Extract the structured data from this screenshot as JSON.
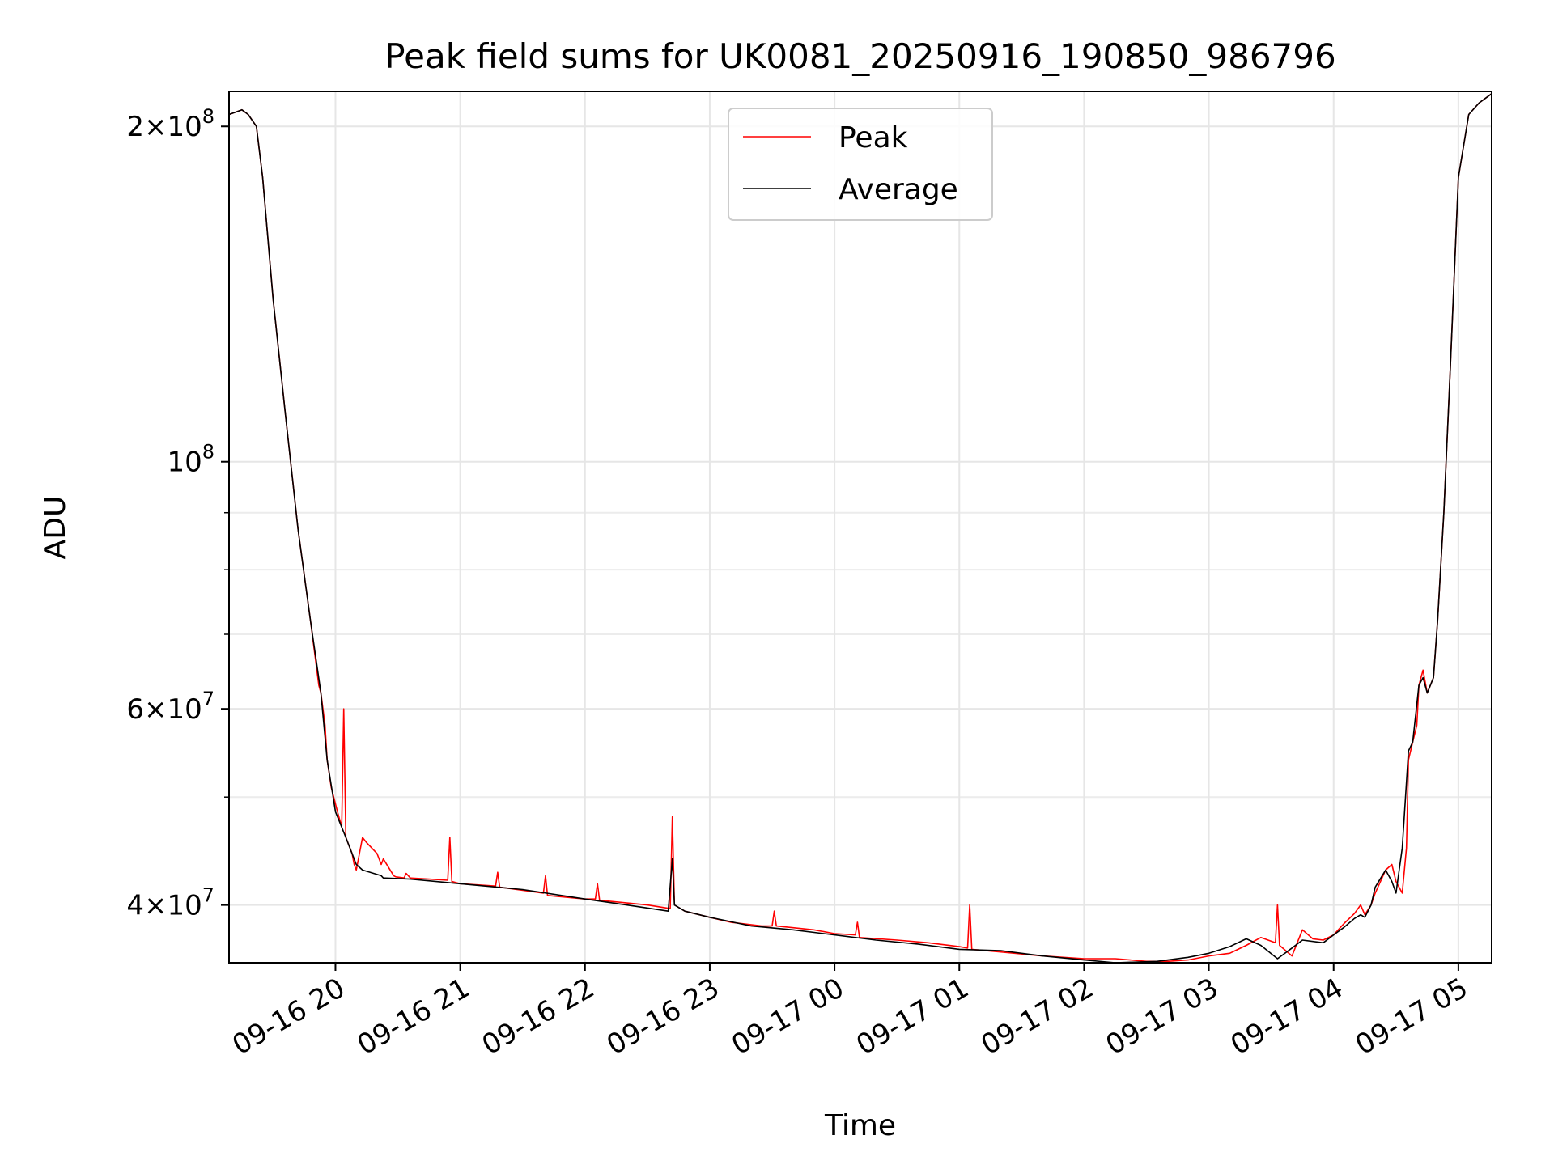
{
  "chart_data": {
    "type": "line",
    "title": "Peak field sums for UK0081_20250916_190850_986796",
    "xlabel": "Time",
    "ylabel": "ADU",
    "x_axis_type": "datetime",
    "xlim": [
      "2025-09-16T19:08:50",
      "2025-09-17T05:16:00"
    ],
    "ylim": [
      35500000,
      215000000
    ],
    "yscale": "log",
    "grid": true,
    "legend_position": "upper-center",
    "x_ticks": [
      {
        "value": "2025-09-16T20:00",
        "label": "09-16 20"
      },
      {
        "value": "2025-09-16T21:00",
        "label": "09-16 21"
      },
      {
        "value": "2025-09-16T22:00",
        "label": "09-16 22"
      },
      {
        "value": "2025-09-16T23:00",
        "label": "09-16 23"
      },
      {
        "value": "2025-09-17T00:00",
        "label": "09-17 00"
      },
      {
        "value": "2025-09-17T01:00",
        "label": "09-17 01"
      },
      {
        "value": "2025-09-17T02:00",
        "label": "09-17 02"
      },
      {
        "value": "2025-09-17T03:00",
        "label": "09-17 03"
      },
      {
        "value": "2025-09-17T04:00",
        "label": "09-17 04"
      },
      {
        "value": "2025-09-17T05:00",
        "label": "09-17 05"
      }
    ],
    "y_ticks": [
      {
        "value": 40000000,
        "mant": "4",
        "exp": "7"
      },
      {
        "value": 60000000,
        "mant": "6",
        "exp": "7"
      },
      {
        "value": 100000000,
        "mant": "",
        "exp": "8"
      },
      {
        "value": 200000000,
        "mant": "2",
        "exp": "8"
      }
    ],
    "y_minor_ticks": [
      50000000,
      70000000,
      80000000,
      90000000
    ],
    "series": [
      {
        "name": "Peak",
        "color": "#ff0000",
        "x": [
          "2025-09-16T19:08:50",
          "2025-09-16T19:12",
          "2025-09-16T19:15",
          "2025-09-16T19:18",
          "2025-09-16T19:22",
          "2025-09-16T19:25",
          "2025-09-16T19:30",
          "2025-09-16T19:36",
          "2025-09-16T19:42",
          "2025-09-16T19:48",
          "2025-09-16T19:52",
          "2025-09-16T19:53",
          "2025-09-16T19:55",
          "2025-09-16T19:56",
          "2025-09-16T19:58",
          "2025-09-16T20:01",
          "2025-09-16T20:03",
          "2025-09-16T20:04",
          "2025-09-16T20:05",
          "2025-09-16T20:08",
          "2025-09-16T20:09",
          "2025-09-16T20:10",
          "2025-09-16T20:13",
          "2025-09-16T20:15",
          "2025-09-16T20:20",
          "2025-09-16T20:22",
          "2025-09-16T20:23",
          "2025-09-16T20:28",
          "2025-09-16T20:29",
          "2025-09-16T20:33",
          "2025-09-16T20:34",
          "2025-09-16T20:36",
          "2025-09-16T20:45",
          "2025-09-16T20:54",
          "2025-09-16T20:55",
          "2025-09-16T20:56",
          "2025-09-16T21:00",
          "2025-09-16T21:17",
          "2025-09-16T21:18",
          "2025-09-16T21:19",
          "2025-09-16T21:40",
          "2025-09-16T21:41",
          "2025-09-16T21:42",
          "2025-09-16T22:00",
          "2025-09-16T22:05",
          "2025-09-16T22:06",
          "2025-09-16T22:07",
          "2025-09-16T22:30",
          "2025-09-16T22:41",
          "2025-09-16T22:42",
          "2025-09-16T22:43",
          "2025-09-16T22:48",
          "2025-09-16T23:00",
          "2025-09-16T23:10",
          "2025-09-16T23:25",
          "2025-09-16T23:30",
          "2025-09-16T23:31",
          "2025-09-16T23:32",
          "2025-09-16T23:50",
          "2025-09-17T00:00",
          "2025-09-17T00:10",
          "2025-09-17T00:11",
          "2025-09-17T00:12",
          "2025-09-17T00:30",
          "2025-09-17T00:45",
          "2025-09-17T01:00",
          "2025-09-17T01:04",
          "2025-09-17T01:05",
          "2025-09-17T01:06",
          "2025-09-17T01:20",
          "2025-09-17T01:40",
          "2025-09-17T02:00",
          "2025-09-17T02:15",
          "2025-09-17T02:30",
          "2025-09-17T02:40",
          "2025-09-17T02:50",
          "2025-09-17T03:00",
          "2025-09-17T03:10",
          "2025-09-17T03:18",
          "2025-09-17T03:25",
          "2025-09-17T03:32",
          "2025-09-17T03:33",
          "2025-09-17T03:34",
          "2025-09-17T03:40",
          "2025-09-17T03:45",
          "2025-09-17T03:50",
          "2025-09-17T03:55",
          "2025-09-17T04:00",
          "2025-09-17T04:05",
          "2025-09-17T04:10",
          "2025-09-17T04:13",
          "2025-09-17T04:15",
          "2025-09-17T04:18",
          "2025-09-17T04:20",
          "2025-09-17T04:25",
          "2025-09-17T04:28",
          "2025-09-17T04:30",
          "2025-09-17T04:33",
          "2025-09-17T04:35",
          "2025-09-17T04:36",
          "2025-09-17T04:38",
          "2025-09-17T04:40",
          "2025-09-17T04:41",
          "2025-09-17T04:43",
          "2025-09-17T04:45",
          "2025-09-17T04:48",
          "2025-09-17T04:50",
          "2025-09-17T04:53",
          "2025-09-17T04:56",
          "2025-09-17T05:00",
          "2025-09-17T05:05",
          "2025-09-17T05:10",
          "2025-09-17T05:16"
        ],
        "y": [
          205000000,
          206000000,
          207000000,
          205000000,
          200000000,
          180000000,
          140000000,
          110000000,
          87000000,
          72000000,
          63000000,
          62000000,
          58000000,
          54000000,
          51000000,
          48500000,
          47000000,
          60000000,
          46000000,
          44500000,
          43500000,
          43000000,
          46000000,
          45500000,
          44500000,
          43500000,
          44000000,
          42500000,
          42400000,
          42300000,
          42700000,
          42300000,
          42200000,
          42100000,
          46000000,
          42000000,
          41800000,
          41600000,
          42800000,
          41500000,
          41000000,
          42500000,
          40800000,
          40500000,
          40500000,
          41800000,
          40400000,
          40000000,
          39700000,
          48000000,
          40000000,
          39500000,
          39000000,
          38600000,
          38300000,
          38300000,
          39500000,
          38300000,
          38000000,
          37700000,
          37600000,
          38600000,
          37400000,
          37200000,
          37000000,
          36700000,
          36600000,
          40000000,
          36500000,
          36300000,
          36000000,
          35800000,
          35800000,
          35600000,
          35600000,
          35700000,
          36000000,
          36200000,
          36800000,
          37400000,
          37000000,
          40000000,
          36800000,
          36000000,
          38000000,
          37300000,
          37200000,
          37600000,
          38500000,
          39300000,
          40000000,
          39200000,
          40000000,
          41000000,
          43000000,
          43500000,
          42000000,
          41000000,
          45000000,
          54000000,
          56000000,
          58000000,
          63000000,
          65000000,
          62000000,
          64000000,
          72000000,
          90000000,
          120000000,
          180000000,
          205000000,
          210000000,
          214000000
        ]
      },
      {
        "name": "Average",
        "color": "#000000",
        "x": [
          "2025-09-16T19:08:50",
          "2025-09-16T19:12",
          "2025-09-16T19:15",
          "2025-09-16T19:18",
          "2025-09-16T19:22",
          "2025-09-16T19:25",
          "2025-09-16T19:30",
          "2025-09-16T19:36",
          "2025-09-16T19:42",
          "2025-09-16T19:48",
          "2025-09-16T19:53",
          "2025-09-16T19:56",
          "2025-09-16T20:00",
          "2025-09-16T20:05",
          "2025-09-16T20:10",
          "2025-09-16T20:13",
          "2025-09-16T20:22",
          "2025-09-16T20:23",
          "2025-09-16T20:36",
          "2025-09-16T21:00",
          "2025-09-16T21:30",
          "2025-09-16T22:00",
          "2025-09-16T22:20",
          "2025-09-16T22:40",
          "2025-09-16T22:42",
          "2025-09-16T22:43",
          "2025-09-16T22:48",
          "2025-09-16T23:00",
          "2025-09-16T23:20",
          "2025-09-16T23:40",
          "2025-09-17T00:00",
          "2025-09-17T00:20",
          "2025-09-17T00:40",
          "2025-09-17T01:00",
          "2025-09-17T01:20",
          "2025-09-17T01:40",
          "2025-09-17T02:00",
          "2025-09-17T02:15",
          "2025-09-17T02:35",
          "2025-09-17T02:50",
          "2025-09-17T03:00",
          "2025-09-17T03:10",
          "2025-09-17T03:18",
          "2025-09-17T03:25",
          "2025-09-17T03:33",
          "2025-09-17T03:40",
          "2025-09-17T03:45",
          "2025-09-17T03:55",
          "2025-09-17T04:00",
          "2025-09-17T04:05",
          "2025-09-17T04:10",
          "2025-09-17T04:13",
          "2025-09-17T04:15",
          "2025-09-17T04:18",
          "2025-09-17T04:20",
          "2025-09-17T04:25",
          "2025-09-17T04:28",
          "2025-09-17T04:30",
          "2025-09-17T04:33",
          "2025-09-17T04:36",
          "2025-09-17T04:38",
          "2025-09-17T04:41",
          "2025-09-17T04:43",
          "2025-09-17T04:45",
          "2025-09-17T04:48",
          "2025-09-17T04:50",
          "2025-09-17T04:53",
          "2025-09-17T04:56",
          "2025-09-17T05:00",
          "2025-09-17T05:05",
          "2025-09-17T05:10",
          "2025-09-17T05:16"
        ],
        "y": [
          205000000,
          206000000,
          207000000,
          205000000,
          200000000,
          180000000,
          140000000,
          110000000,
          87000000,
          72000000,
          62000000,
          54000000,
          48500000,
          46000000,
          43500000,
          43000000,
          42500000,
          42300000,
          42200000,
          41800000,
          41300000,
          40500000,
          40000000,
          39500000,
          44000000,
          40000000,
          39500000,
          39000000,
          38300000,
          38000000,
          37600000,
          37200000,
          36900000,
          36500000,
          36400000,
          36000000,
          35700000,
          35500000,
          35600000,
          35900000,
          36200000,
          36700000,
          37300000,
          36800000,
          35800000,
          36600000,
          37200000,
          37000000,
          37600000,
          38200000,
          38900000,
          39200000,
          39000000,
          40000000,
          41500000,
          43000000,
          42000000,
          41000000,
          45000000,
          55000000,
          56000000,
          63000000,
          64000000,
          62000000,
          64000000,
          72000000,
          90000000,
          120000000,
          180000000,
          205000000,
          210000000,
          214000000
        ]
      }
    ]
  }
}
